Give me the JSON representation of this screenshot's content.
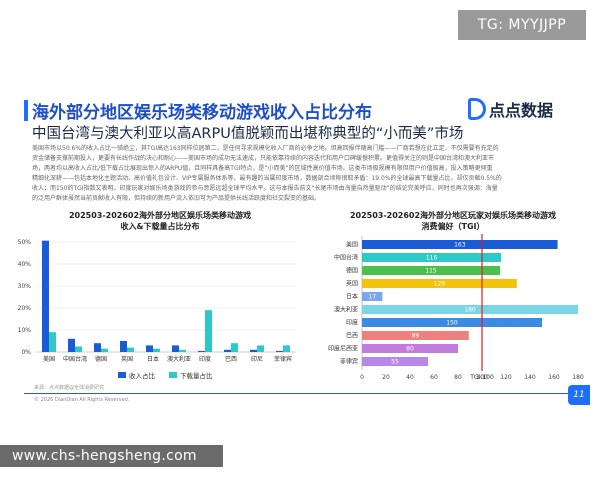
{
  "top_tag": "TG: MYYJJPP",
  "title": "海外部分地区娱乐场类移动游戏收入占比分布",
  "subtitle": "中国台湾与澳大利亚以高ARPU值脱颖而出堪称典型的“小而美”市场",
  "logo": {
    "name": "点点数据"
  },
  "body_lines": [
    "美国市场以50.6%的收入占比一骑绝尘，其TGI高达163同样位居第二，是任何寻求规模化收入厂商的必争之地。但高回报伴随高门槛——厂商若想在此立足，不仅需要有充足的",
    "资金储备支撑前期投入，更要有长线作战的决心和耐心——美国市场的成功无法速成，只能依靠持续的内容迭代和用户口碑缓慢积累。更值得关注的则是中国台湾和澳大利亚市",
    "场，两者均以高收入占比/低下载占比展现出惊人的ARPU值，且同样具备高TGI特点，是“小而美”的区域性高价值市场。这类市场极规模有限但用户价值极高，投入策略更倾重",
    "精细化深耕——包括本地化主题活动、高价值礼包设计、VIP专属服务体系等。最有趣的当属印度市场，数据剖合顷称很取矛盾：19.0%的全球最高下载量占比，却仅贡献0.5%的",
    "收入；而150的TGI指数又表明，印度玩家对娱乐场类游戏的参与意愿远超全球平均水平。这与本报告前文“长尾市场由海量自然量驱动”的结论完美呼应，同时也再次强调：海量",
    "的泛用户群体虽然当前贡献收入有限，但持续的新用户流入依旧可为产品提供长线活跃度和社交裂变的基础。"
  ],
  "left_chart_title": [
    "202503-202602海外部分地区娱乐场类移动游戏",
    "收入&下载量占比分布"
  ],
  "right_chart_title": [
    "202503-202602海外部分地区玩家对娱乐场类移动游戏",
    "消费偏好（TGI）"
  ],
  "chart_data": [
    {
      "type": "bar",
      "categories": [
        "美国",
        "中国台湾",
        "德国",
        "英国",
        "日本",
        "澳大利亚",
        "印度",
        "巴西",
        "印尼",
        "菲律宾"
      ],
      "series": [
        {
          "name": "收入占比",
          "values": [
            50.6,
            6,
            4,
            5,
            3,
            3,
            0.5,
            1,
            1,
            0.5
          ],
          "color": "#1a5bd6"
        },
        {
          "name": "下载量占比",
          "values": [
            9,
            2.5,
            1.5,
            2,
            1.5,
            1,
            19.0,
            4,
            3,
            3
          ],
          "color": "#2ec8c8"
        }
      ],
      "ylim": [
        0,
        50
      ],
      "yticks": [
        "0%",
        "10%",
        "20%",
        "30%",
        "40%",
        "50%"
      ],
      "grid": true,
      "legend": "bottom"
    },
    {
      "type": "bar",
      "orientation": "horizontal",
      "categories": [
        "美国",
        "中国台湾",
        "德国",
        "英国",
        "日本",
        "澳大利亚",
        "印度",
        "巴西",
        "印度尼西亚",
        "菲律宾"
      ],
      "values": [
        163,
        116,
        115,
        129,
        17,
        180,
        150,
        89,
        80,
        55
      ],
      "colors": [
        "#1a5bd6",
        "#2ec8c8",
        "#4cc04c",
        "#f2c20c",
        "#7aa6ef",
        "#7ad6e6",
        "#3a8ae6",
        "#f08080",
        "#c27ce0",
        "#b888e8"
      ],
      "xlim": [
        0,
        180
      ],
      "xticks": [
        "0",
        "20",
        "40",
        "60",
        "80",
        "100",
        "120",
        "140",
        "160",
        "180"
      ],
      "reference": {
        "value": 100,
        "label": "TGI:100",
        "color": "#e02020"
      },
      "grid": false
    }
  ],
  "source": "来源：点点数据@全球消费研究",
  "copyright": "© 2026 DianDian All Rights Reserved.",
  "page_number": "11",
  "watermark": "www.chs-hengsheng.com"
}
